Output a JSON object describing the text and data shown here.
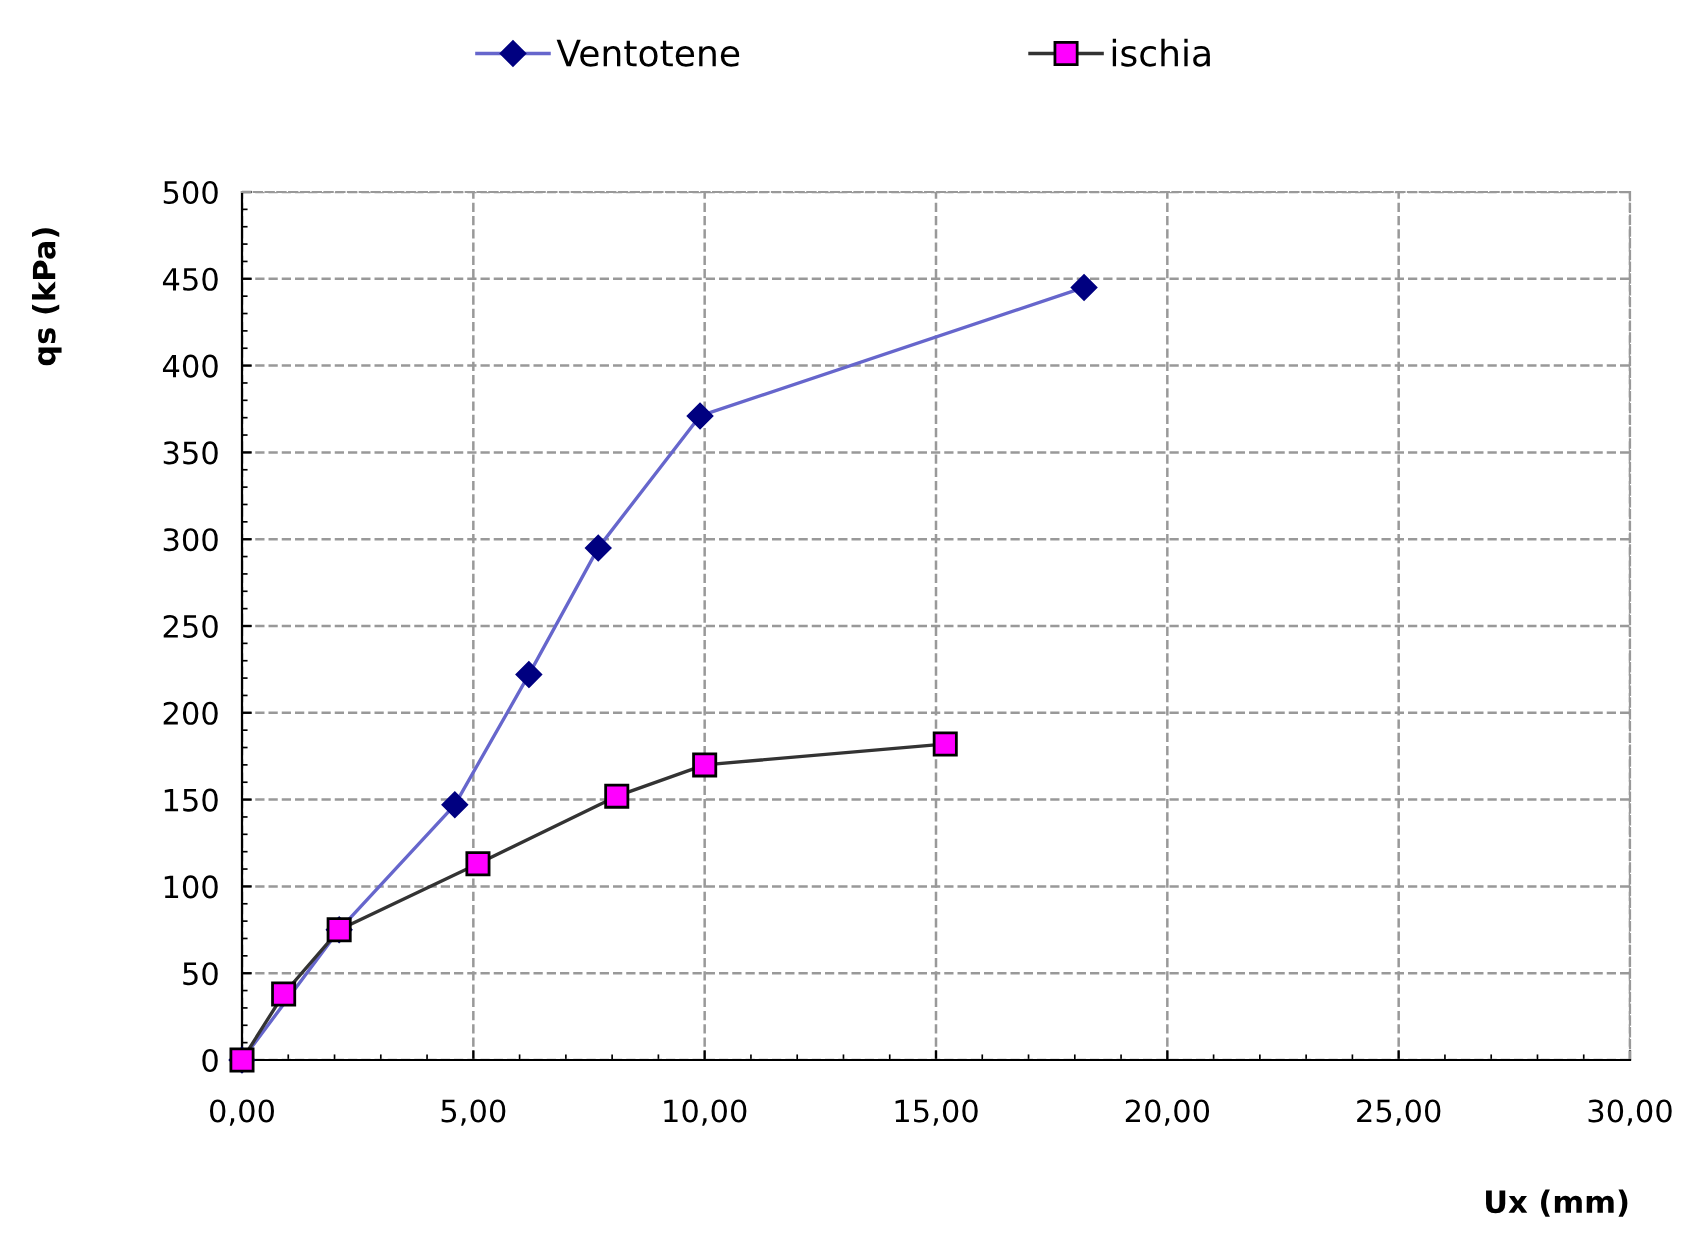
{
  "chart_data": {
    "type": "line",
    "xlabel": "Ux (mm)",
    "ylabel": "qs (kPa)",
    "series": [
      {
        "name": "Ventotene",
        "color": "#000080",
        "marker": "diamond",
        "x": [
          0,
          2.1,
          4.6,
          6.2,
          7.7,
          9.9,
          18.2
        ],
        "values": [
          0,
          75,
          147,
          222,
          295,
          371,
          445
        ]
      },
      {
        "name": "ischia",
        "color": "#ff00ff",
        "marker": "square",
        "x": [
          0,
          0.9,
          2.1,
          5.1,
          8.1,
          10.0,
          15.2
        ],
        "values": [
          0,
          38,
          75,
          113,
          152,
          170,
          182
        ]
      }
    ],
    "xlim": [
      0,
      30
    ],
    "xticks": [
      {
        "value": 0,
        "label": "0,00"
      },
      {
        "value": 5,
        "label": "5,00"
      },
      {
        "value": 10,
        "label": "10,00"
      },
      {
        "value": 15,
        "label": "15,00"
      },
      {
        "value": 20,
        "label": "20,00"
      },
      {
        "value": 25,
        "label": "25,00"
      },
      {
        "value": 30,
        "label": "30,00"
      }
    ],
    "ylim": [
      0,
      500
    ],
    "yticks": [
      0,
      50,
      100,
      150,
      200,
      250,
      300,
      350,
      400,
      450,
      500
    ],
    "grid": true,
    "legend": "top"
  }
}
